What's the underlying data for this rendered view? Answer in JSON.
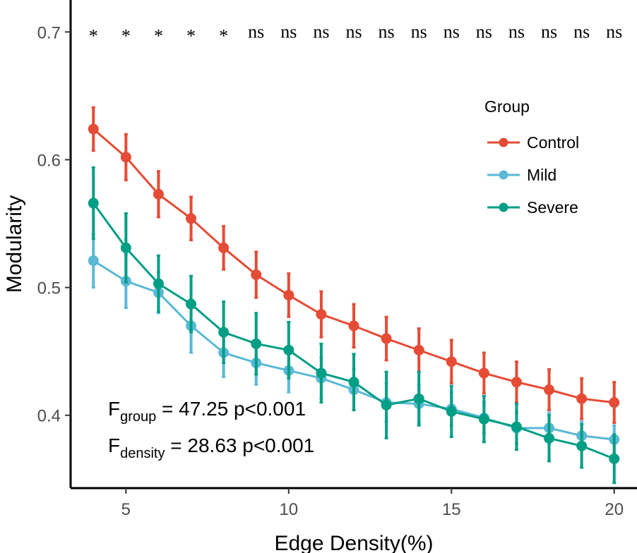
{
  "chart_data": {
    "type": "line",
    "title": "",
    "xlabel": "Edge Density(%)",
    "ylabel": "Modularity",
    "xlim": [
      3.3,
      20.7
    ],
    "ylim": [
      0.343,
      0.725
    ],
    "xticks": [
      5,
      10,
      15,
      20
    ],
    "yticks": [
      0.4,
      0.5,
      0.6,
      0.7
    ],
    "x": [
      4,
      5,
      6,
      7,
      8,
      9,
      10,
      11,
      12,
      13,
      14,
      15,
      16,
      17,
      18,
      19,
      20
    ],
    "significance": [
      "*",
      "*",
      "*",
      "*",
      "*",
      "ns",
      "ns",
      "ns",
      "ns",
      "ns",
      "ns",
      "ns",
      "ns",
      "ns",
      "ns",
      "ns",
      "ns"
    ],
    "legend": {
      "title": "Group",
      "position": "top-right"
    },
    "series": [
      {
        "name": "Control",
        "color": "#e64b35",
        "values": [
          0.624,
          0.602,
          0.573,
          0.554,
          0.531,
          0.51,
          0.494,
          0.479,
          0.47,
          0.46,
          0.451,
          0.442,
          0.433,
          0.426,
          0.42,
          0.413,
          0.41
        ],
        "errors": [
          0.017,
          0.018,
          0.018,
          0.017,
          0.017,
          0.018,
          0.017,
          0.018,
          0.017,
          0.017,
          0.017,
          0.017,
          0.016,
          0.016,
          0.016,
          0.016,
          0.016
        ]
      },
      {
        "name": "Mild",
        "color": "#5ab8d6",
        "values": [
          0.521,
          0.505,
          0.496,
          0.47,
          0.449,
          0.441,
          0.435,
          0.429,
          0.42,
          0.41,
          0.409,
          0.405,
          0.398,
          0.39,
          0.39,
          0.384,
          0.381
        ],
        "errors": [
          0.021,
          0.021,
          0.016,
          0.021,
          0.019,
          0.017,
          0.017,
          0.016,
          0.016,
          0.015,
          0.015,
          0.013,
          0.012,
          0.012,
          0.012,
          0.011,
          0.011
        ]
      },
      {
        "name": "Severe",
        "color": "#009e84",
        "values": [
          0.566,
          0.531,
          0.503,
          0.487,
          0.465,
          0.456,
          0.451,
          0.433,
          0.426,
          0.408,
          0.413,
          0.403,
          0.397,
          0.391,
          0.382,
          0.376,
          0.366
        ],
        "errors": [
          0.028,
          0.027,
          0.022,
          0.022,
          0.024,
          0.024,
          0.022,
          0.023,
          0.022,
          0.026,
          0.021,
          0.02,
          0.018,
          0.018,
          0.018,
          0.017,
          0.019
        ]
      }
    ],
    "annotations": [
      {
        "main": "F",
        "sub": "group",
        "rest": " = 47.25 p<0.001"
      },
      {
        "main": "F",
        "sub": "density",
        "rest": " = 28.63 p<0.001"
      }
    ]
  }
}
